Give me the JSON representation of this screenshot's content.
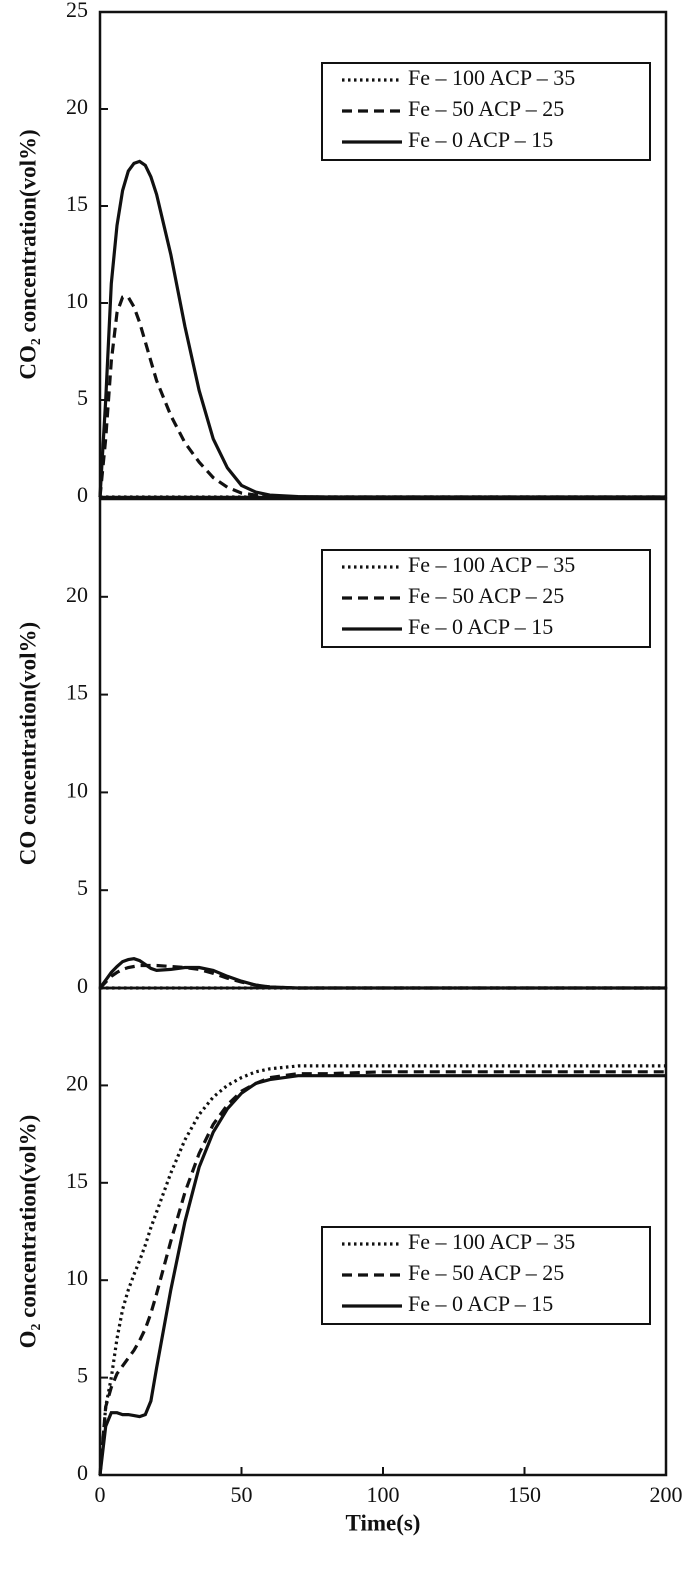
{
  "chart_data": [
    {
      "type": "line",
      "y_label": "CO₂ concentration(vol%)",
      "x": [
        0,
        2,
        4,
        6,
        8,
        10,
        12,
        14,
        16,
        18,
        20,
        25,
        30,
        35,
        40,
        45,
        50,
        55,
        60,
        70,
        80,
        100,
        150,
        200
      ],
      "xlim": [
        0,
        200
      ],
      "ylim": [
        0,
        25
      ],
      "yticks": [
        0,
        5,
        10,
        15,
        20,
        25
      ],
      "legend_position": "upper right",
      "series": [
        {
          "name": "Fe – 100 ACP – 35",
          "color": "#111111",
          "dash": "dotted",
          "values": [
            0,
            0,
            0,
            0,
            0,
            0,
            0,
            0,
            0,
            0,
            0,
            0,
            0,
            0,
            0,
            0,
            0,
            0,
            0,
            0,
            0,
            0,
            0,
            0
          ]
        },
        {
          "name": "Fe – 50 ACP – 25",
          "color": "#111111",
          "dash": "dashed",
          "values": [
            0,
            3,
            7,
            9.5,
            10.3,
            10.3,
            9.8,
            9,
            8,
            7,
            6,
            4.2,
            2.8,
            1.8,
            1,
            0.5,
            0.2,
            0.1,
            0.05,
            0,
            0,
            0,
            0,
            0
          ]
        },
        {
          "name": "Fe – 0 ACP – 15",
          "color": "#111111",
          "dash": "solid",
          "values": [
            0,
            5,
            11,
            14,
            15.8,
            16.8,
            17.2,
            17.3,
            17.1,
            16.5,
            15.6,
            12.5,
            8.8,
            5.5,
            3,
            1.5,
            0.6,
            0.25,
            0.1,
            0.02,
            0,
            0,
            0,
            0
          ]
        }
      ]
    },
    {
      "type": "line",
      "y_label": "CO concentration(vol%)",
      "x": [
        0,
        2,
        4,
        6,
        8,
        10,
        12,
        14,
        16,
        18,
        20,
        25,
        30,
        35,
        40,
        45,
        50,
        55,
        60,
        70,
        80,
        100,
        150,
        200
      ],
      "xlim": [
        0,
        200
      ],
      "ylim": [
        0,
        25
      ],
      "yticks": [
        0,
        5,
        10,
        15,
        20
      ],
      "legend_position": "upper right",
      "series": [
        {
          "name": "Fe – 100 ACP – 35",
          "color": "#111111",
          "dash": "dotted",
          "values": [
            0,
            0,
            0,
            0,
            0,
            0,
            0,
            0,
            0,
            0,
            0,
            0,
            0,
            0,
            0,
            0,
            0,
            0,
            0,
            0,
            0,
            0,
            0,
            0
          ]
        },
        {
          "name": "Fe – 50 ACP – 25",
          "color": "#111111",
          "dash": "dashed",
          "values": [
            0,
            0.3,
            0.6,
            0.8,
            0.95,
            1.05,
            1.1,
            1.15,
            1.15,
            1.15,
            1.15,
            1.1,
            1.05,
            0.95,
            0.75,
            0.5,
            0.3,
            0.15,
            0.05,
            0,
            0,
            0,
            0,
            0
          ]
        },
        {
          "name": "Fe – 0 ACP – 15",
          "color": "#111111",
          "dash": "solid",
          "values": [
            0,
            0.4,
            0.8,
            1.1,
            1.35,
            1.45,
            1.5,
            1.4,
            1.2,
            1,
            0.9,
            0.95,
            1.05,
            1.05,
            0.9,
            0.6,
            0.35,
            0.15,
            0.05,
            0,
            0,
            0,
            0,
            0
          ]
        }
      ]
    },
    {
      "type": "line",
      "y_label": "O₂ concentration(vol%)",
      "x_label": "Time(s)",
      "x": [
        0,
        2,
        4,
        6,
        8,
        10,
        12,
        14,
        16,
        18,
        20,
        25,
        30,
        35,
        40,
        45,
        50,
        55,
        60,
        70,
        80,
        100,
        150,
        200
      ],
      "xlim": [
        0,
        200
      ],
      "xticks": [
        0,
        50,
        100,
        150,
        200
      ],
      "ylim": [
        0,
        25
      ],
      "yticks": [
        0,
        5,
        10,
        15,
        20
      ],
      "legend_position": "center right",
      "series": [
        {
          "name": "Fe – 100 ACP – 35",
          "color": "#111111",
          "dash": "dotted",
          "values": [
            0,
            3.5,
            5,
            7,
            8.5,
            9.5,
            10.3,
            11,
            11.8,
            12.7,
            13.5,
            15.5,
            17.2,
            18.5,
            19.4,
            20,
            20.4,
            20.7,
            20.85,
            21,
            21,
            21,
            21,
            21
          ]
        },
        {
          "name": "Fe – 50 ACP – 25",
          "color": "#111111",
          "dash": "dashed",
          "values": [
            0,
            3.5,
            4.5,
            5.2,
            5.6,
            6,
            6.4,
            6.9,
            7.5,
            8.3,
            9.3,
            12,
            14.5,
            16.5,
            18,
            19,
            19.7,
            20.1,
            20.4,
            20.6,
            20.6,
            20.7,
            20.7,
            20.7
          ]
        },
        {
          "name": "Fe – 0 ACP – 15",
          "color": "#111111",
          "dash": "solid",
          "values": [
            0,
            2.5,
            3.2,
            3.2,
            3.1,
            3.1,
            3.05,
            3,
            3.1,
            3.8,
            5.5,
            9.5,
            13,
            15.8,
            17.6,
            18.8,
            19.6,
            20.1,
            20.3,
            20.5,
            20.5,
            20.5,
            20.5,
            20.5
          ]
        }
      ]
    }
  ]
}
